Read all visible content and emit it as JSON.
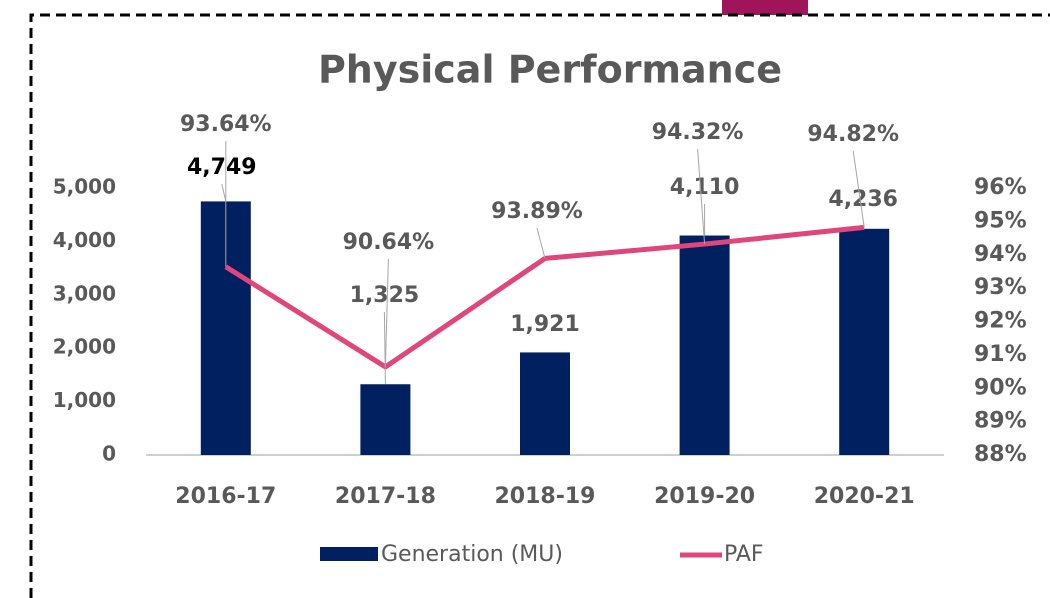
{
  "chart_data": {
    "type": "bar",
    "title": "Physical Performance",
    "categories": [
      "2016-17",
      "2017-18",
      "2018-19",
      "2019-20",
      "2020-21"
    ],
    "series": [
      {
        "name": "Generation (MU)",
        "type": "bar",
        "color": "#002060",
        "values": [
          4749,
          1325,
          1921,
          4110,
          4236
        ],
        "value_labels": [
          "4,749",
          "1,325",
          "1,921",
          "4,110",
          "4,236"
        ]
      },
      {
        "name": "PAF",
        "type": "line",
        "axis": "y2",
        "color": "#e0457b",
        "values": [
          93.64,
          90.64,
          93.89,
          94.32,
          94.82
        ],
        "value_labels": [
          "93.64%",
          "90.64%",
          "93.89%",
          "94.32%",
          "94.82%"
        ]
      }
    ],
    "ylim": [
      0,
      5000
    ],
    "yticks": [
      0,
      {
        "value": 1000,
        "label": "1,000"
      },
      {
        "value": 2000,
        "label": "2,000"
      },
      {
        "value": 3000,
        "label": "3,000"
      },
      {
        "value": 4000,
        "label": "4,000"
      },
      {
        "value": 5000,
        "label": "5,000"
      }
    ],
    "y2lim": [
      88,
      96
    ],
    "y2ticks": [
      {
        "value": 88,
        "label": "88%"
      },
      {
        "value": 89,
        "label": "89%"
      },
      {
        "value": 90,
        "label": "90%"
      },
      {
        "value": 91,
        "label": "91%"
      },
      {
        "value": 92,
        "label": "92%"
      },
      {
        "value": 93,
        "label": "93%"
      },
      {
        "value": 94,
        "label": "94%"
      },
      {
        "value": 95,
        "label": "95%"
      },
      {
        "value": 96,
        "label": "96%"
      }
    ],
    "grid": false,
    "legend": "bottom"
  }
}
